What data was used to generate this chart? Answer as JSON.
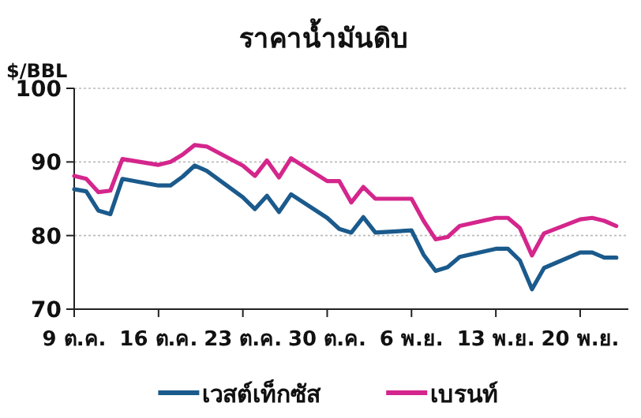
{
  "chart_data": {
    "type": "line",
    "title": "ราคาน้ำมันดิบ",
    "ylabel": "$/BBL",
    "x": [
      "--10-09",
      "--10-10",
      "--10-11",
      "--10-12",
      "--10-13",
      "--10-16",
      "--10-17",
      "--10-18",
      "--10-19",
      "--10-20",
      "--10-23",
      "--10-24",
      "--10-25",
      "--10-26",
      "--10-27",
      "--10-30",
      "--10-31",
      "--11-01",
      "--11-02",
      "--11-03",
      "--11-06",
      "--11-07",
      "--11-08",
      "--11-09",
      "--11-10",
      "--11-13",
      "--11-14",
      "--11-15",
      "--11-16",
      "--11-17",
      "--11-20",
      "--11-21",
      "--11-22",
      "--11-23"
    ],
    "series": [
      {
        "name": "เวสต์เท็กซัส",
        "color": "#1b5a8c",
        "values": [
          86.3,
          86,
          83.4,
          82.9,
          87.7,
          86.8,
          86.8,
          88,
          89.5,
          88.8,
          85.2,
          83.6,
          85.4,
          83.2,
          85.6,
          82.4,
          80.9,
          80.4,
          82.5,
          80.4,
          80.7,
          77.4,
          75.2,
          75.7,
          77.1,
          78.2,
          78.2,
          76.6,
          72.7,
          75.6,
          77.7,
          77.7,
          77,
          77
        ]
      },
      {
        "name": "เบรนท์",
        "color": "#d4268c",
        "values": [
          88.1,
          87.7,
          85.9,
          86.1,
          90.4,
          89.6,
          90,
          91,
          92.3,
          92.1,
          89.5,
          88.1,
          90.2,
          87.9,
          90.5,
          87.4,
          87.4,
          84.5,
          86.6,
          85,
          85,
          82,
          79.5,
          79.8,
          81.3,
          82.4,
          82.4,
          81,
          77.3,
          80.3,
          82.2,
          82.4,
          82,
          81.3
        ]
      }
    ],
    "xlim": [
      "--10-09",
      "--11-24"
    ],
    "xticks": [
      {
        "value": "--10-09",
        "label": "9 ต.ค."
      },
      {
        "value": "--10-16",
        "label": "16 ต.ค."
      },
      {
        "value": "--10-23",
        "label": "23 ต.ค."
      },
      {
        "value": "--10-30",
        "label": "30 ต.ค."
      },
      {
        "value": "--11-06",
        "label": "6 พ.ย."
      },
      {
        "value": "--11-13",
        "label": "13 พ.ย."
      },
      {
        "value": "--11-20",
        "label": "20 พ.ย."
      }
    ],
    "ylim": [
      70,
      100
    ],
    "yticks": [
      70,
      80,
      90,
      100
    ],
    "grid": "y",
    "legend": "bottom",
    "marker": "none",
    "line_style": "solid"
  }
}
